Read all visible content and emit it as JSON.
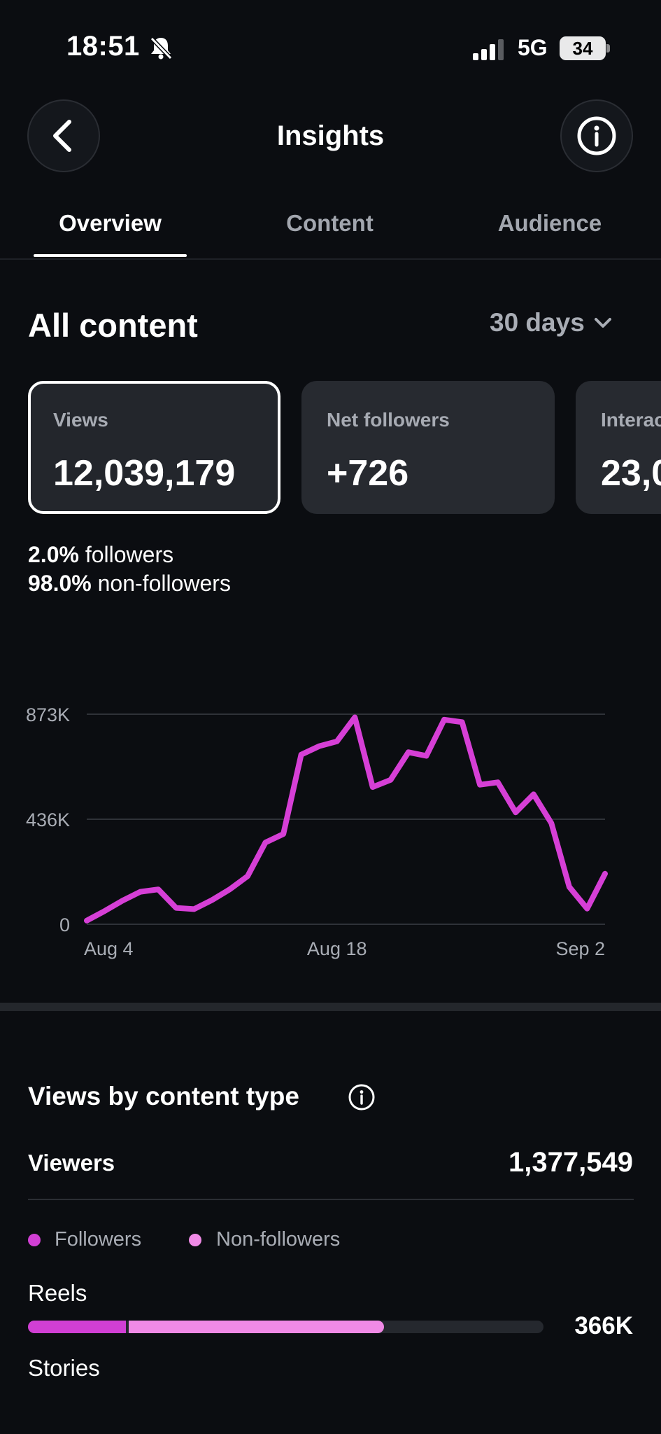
{
  "status_bar": {
    "time": "18:51",
    "network": "5G",
    "battery": "34"
  },
  "header": {
    "title": "Insights"
  },
  "tabs": [
    {
      "label": "Overview",
      "active": true
    },
    {
      "label": "Content",
      "active": false
    },
    {
      "label": "Audience",
      "active": false
    }
  ],
  "overview": {
    "section_title": "All content",
    "range": "30 days",
    "metrics": [
      {
        "label": "Views",
        "value": "12,039,179",
        "selected": true
      },
      {
        "label": "Net followers",
        "value": "+726",
        "selected": false
      },
      {
        "label": "Interactions",
        "value": "23,0",
        "selected": false
      }
    ],
    "split": [
      {
        "percent": "2.0%",
        "label": "followers"
      },
      {
        "percent": "98.0%",
        "label": "non-followers"
      }
    ]
  },
  "chart_data": {
    "type": "line",
    "title": "",
    "xlabel": "",
    "ylabel": "",
    "ylim": [
      0,
      873000
    ],
    "y_ticks": [
      "873K",
      "436K",
      "0"
    ],
    "x_ticks": [
      "Aug 4",
      "Aug 18",
      "Sep 2"
    ],
    "grid": true,
    "color": "#d63fd6",
    "x": [
      "Aug 4",
      "Aug 5",
      "Aug 6",
      "Aug 7",
      "Aug 8",
      "Aug 9",
      "Aug 10",
      "Aug 11",
      "Aug 12",
      "Aug 13",
      "Aug 14",
      "Aug 15",
      "Aug 16",
      "Aug 17",
      "Aug 18",
      "Aug 19",
      "Aug 20",
      "Aug 21",
      "Aug 22",
      "Aug 23",
      "Aug 24",
      "Aug 25",
      "Aug 26",
      "Aug 27",
      "Aug 28",
      "Aug 29",
      "Aug 30",
      "Aug 31",
      "Sep 1",
      "Sep 2"
    ],
    "values": [
      15000,
      55000,
      98000,
      135000,
      145000,
      68000,
      63000,
      100000,
      145000,
      200000,
      340000,
      375000,
      705000,
      740000,
      760000,
      860000,
      570000,
      600000,
      715000,
      700000,
      850000,
      840000,
      580000,
      590000,
      465000,
      540000,
      420000,
      155000,
      65000,
      210000
    ]
  },
  "views_by_content_type": {
    "title": "Views by content type",
    "viewers_label": "Viewers",
    "viewers_value": "1,377,549",
    "legend": [
      {
        "label": "Followers",
        "color": "#d13fd4"
      },
      {
        "label": "Non-followers",
        "color": "#f08ae6"
      }
    ],
    "rows": [
      {
        "label": "Reels",
        "value": "366K",
        "followers_share": 0.19,
        "non_followers_share": 0.5
      },
      {
        "label": "Stories"
      }
    ]
  }
}
